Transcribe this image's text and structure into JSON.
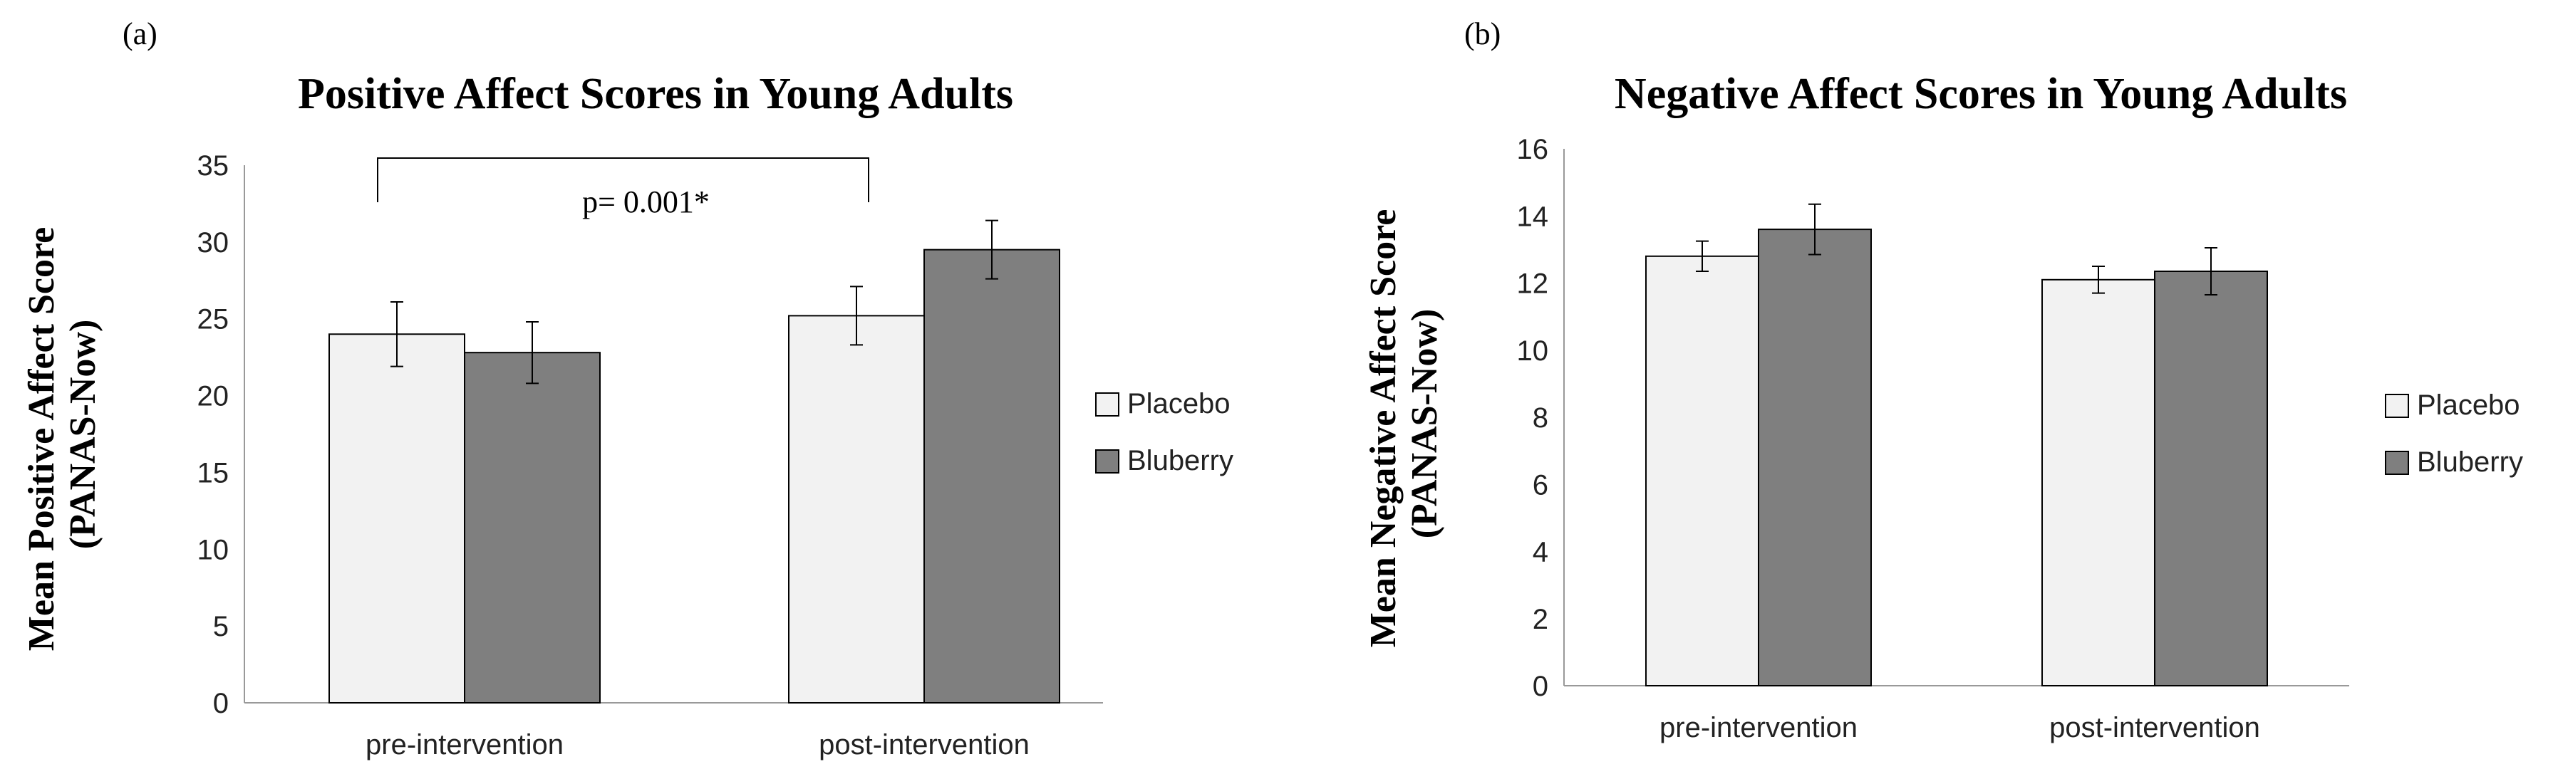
{
  "chart_data": [
    {
      "type": "bar",
      "panel_label": "(a)",
      "title": "Positive Affect Scores in Young Adults",
      "ylabel_line1": "Mean Positive Affect Score",
      "ylabel_line2": "(PANAS-Now)",
      "xlabel": "",
      "categories": [
        "pre-intervention",
        "post-intervention"
      ],
      "ylim": [
        0,
        35
      ],
      "yticks": [
        0,
        5,
        10,
        15,
        20,
        25,
        30,
        35
      ],
      "series": [
        {
          "name": "Placebo",
          "color": "#f2f2f2",
          "values": [
            24.0,
            25.2
          ],
          "errors": [
            2.1,
            1.9
          ]
        },
        {
          "name": "Bluberry",
          "color": "#7f7f7f",
          "values": [
            22.8,
            29.5
          ],
          "errors": [
            2.0,
            1.9
          ]
        }
      ],
      "legend": "right",
      "annotation": {
        "text": "p= 0.001*",
        "from": "pre-intervention",
        "to": "post-intervention"
      }
    },
    {
      "type": "bar",
      "panel_label": "(b)",
      "title": "Negative Affect Scores in Young Adults",
      "ylabel_line1": "Mean Negative Affect Score",
      "ylabel_line2": "(PANAS-Now)",
      "xlabel": "",
      "categories": [
        "pre-intervention",
        "post-intervention"
      ],
      "ylim": [
        0,
        16
      ],
      "yticks": [
        0,
        2,
        4,
        6,
        8,
        10,
        12,
        14,
        16
      ],
      "series": [
        {
          "name": "Placebo",
          "color": "#f2f2f2",
          "values": [
            12.8,
            12.1
          ],
          "errors": [
            0.45,
            0.4
          ]
        },
        {
          "name": "Bluberry",
          "color": "#7f7f7f",
          "values": [
            13.6,
            12.35
          ],
          "errors": [
            0.75,
            0.7
          ]
        }
      ],
      "legend": "right"
    }
  ]
}
